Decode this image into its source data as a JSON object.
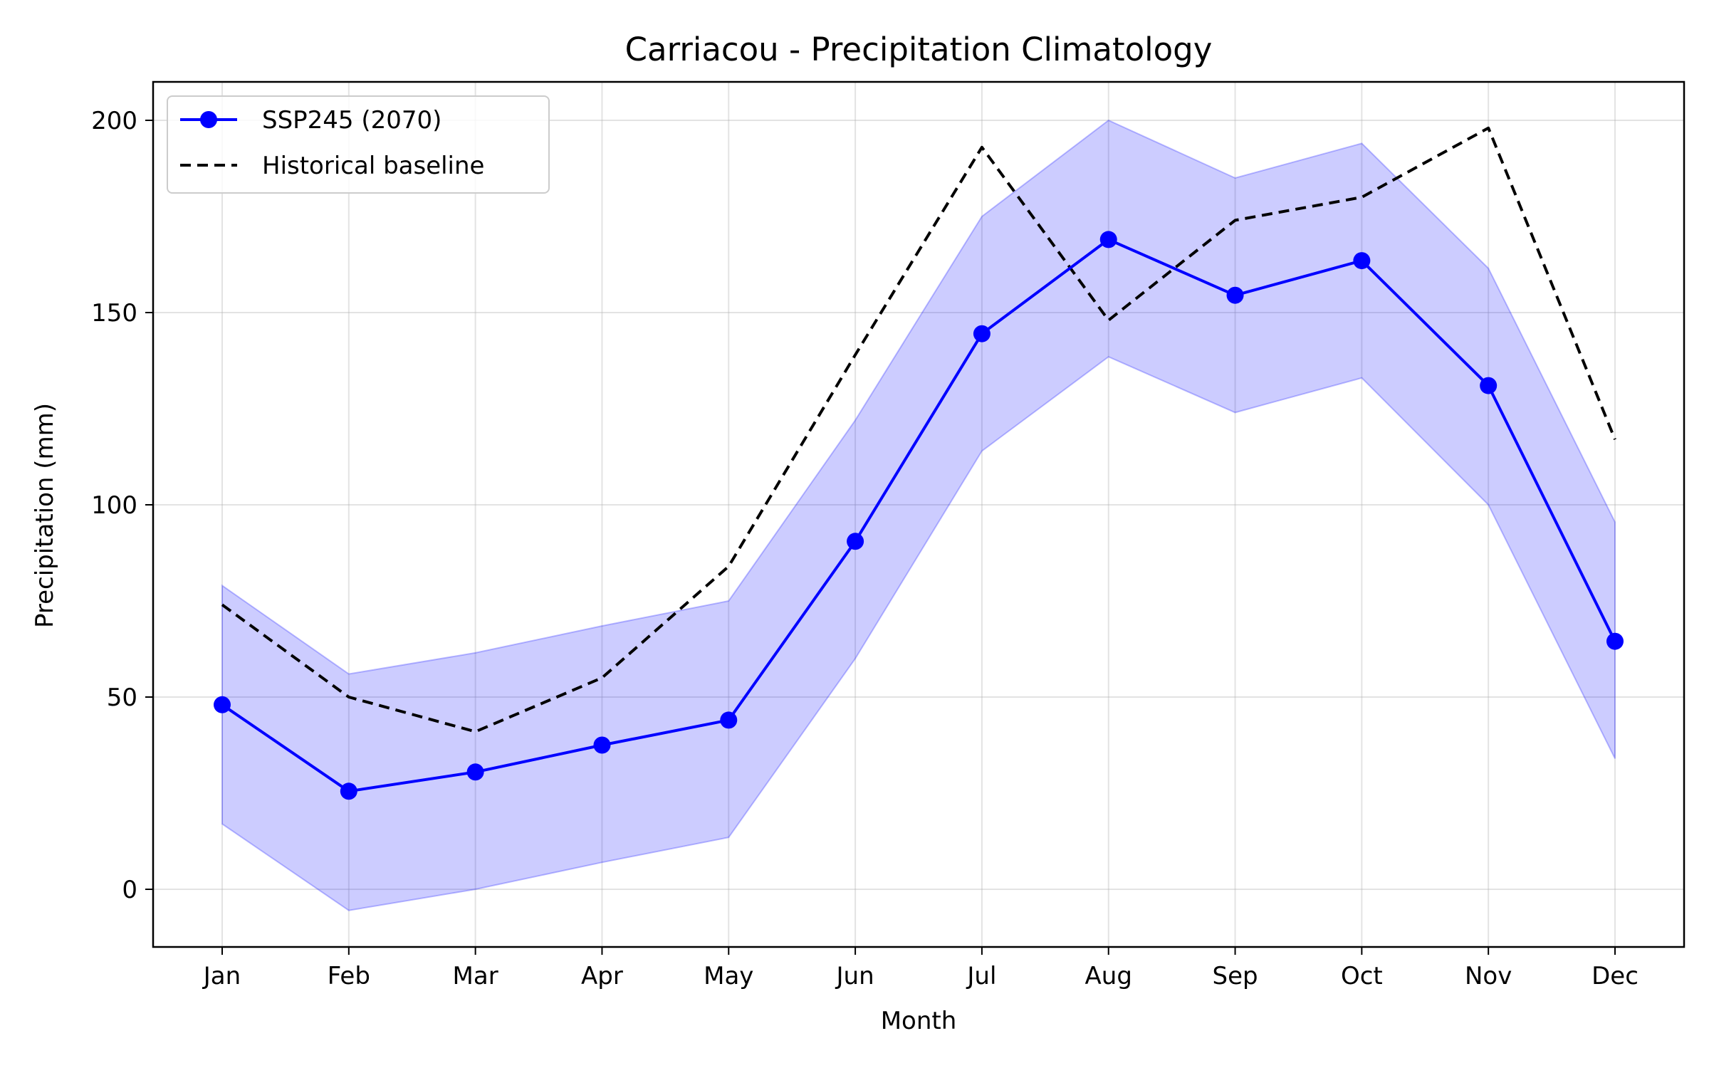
{
  "chart_data": {
    "type": "line",
    "title": "Carriacou - Precipitation Climatology",
    "xlabel": "Month",
    "ylabel": "Precipitation (mm)",
    "categories": [
      "Jan",
      "Feb",
      "Mar",
      "Apr",
      "May",
      "Jun",
      "Jul",
      "Aug",
      "Sep",
      "Oct",
      "Nov",
      "Dec"
    ],
    "ylim": [
      -15,
      210
    ],
    "yticks": [
      0,
      50,
      100,
      150,
      200
    ],
    "grid": true,
    "legend_position": "upper-left",
    "series": [
      {
        "name": "SSP245 (2070)",
        "style": "solid-markers",
        "color": "#0000ff",
        "values": [
          48,
          25.5,
          30.5,
          37.5,
          44,
          90.5,
          144.5,
          169,
          154.5,
          163.5,
          131,
          64.5
        ]
      },
      {
        "name": "Historical baseline",
        "style": "dashed",
        "color": "#000000",
        "values": [
          74,
          50,
          41,
          55,
          84,
          139,
          193,
          148,
          174,
          180,
          198,
          117
        ]
      }
    ],
    "band": {
      "color": "#0000ff",
      "opacity": 0.2,
      "lower": [
        17,
        -5.5,
        0,
        7,
        13.5,
        60,
        114,
        138.5,
        124,
        133,
        100,
        34
      ],
      "upper": [
        79,
        56,
        61.5,
        68.5,
        75,
        122,
        175,
        200,
        185,
        194,
        161.5,
        95.5
      ]
    }
  }
}
